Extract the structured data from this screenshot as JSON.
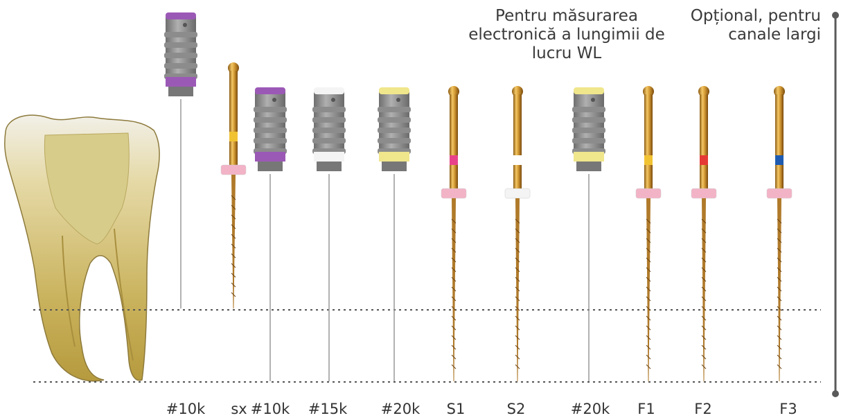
{
  "captions": {
    "wl_measurement": [
      "Pentru măsurarea",
      "electronică a lungimii de",
      "lucru WL"
    ],
    "optional": [
      "Opțional, pentru",
      "canale largi"
    ]
  },
  "instruments": [
    {
      "id": "hand-10k-a",
      "label": "#10k",
      "kind": "hand",
      "color": "#9b59b6"
    },
    {
      "id": "sx",
      "label": "sx",
      "kind": "rotary",
      "color": "#f1c232"
    },
    {
      "id": "hand-10k-b",
      "label": "#10k",
      "kind": "hand",
      "color": "#9b59b6"
    },
    {
      "id": "hand-15k",
      "label": "#15k",
      "kind": "hand",
      "color": "#f4f4f4"
    },
    {
      "id": "hand-20k-a",
      "label": "#20k",
      "kind": "hand",
      "color": "#f0e68c"
    },
    {
      "id": "s1",
      "label": "S1",
      "kind": "rotary",
      "color": "#e8438a"
    },
    {
      "id": "s2",
      "label": "S2",
      "kind": "rotary",
      "color": "#ffffff"
    },
    {
      "id": "hand-20k-b",
      "label": "#20k",
      "kind": "hand",
      "color": "#f0e68c"
    },
    {
      "id": "f1",
      "label": "F1",
      "kind": "rotary",
      "color": "#f1c232"
    },
    {
      "id": "f2",
      "label": "F2",
      "kind": "rotary",
      "color": "#e53935"
    },
    {
      "id": "f3",
      "label": "F3",
      "kind": "rotary",
      "color": "#1e5bb0"
    }
  ]
}
